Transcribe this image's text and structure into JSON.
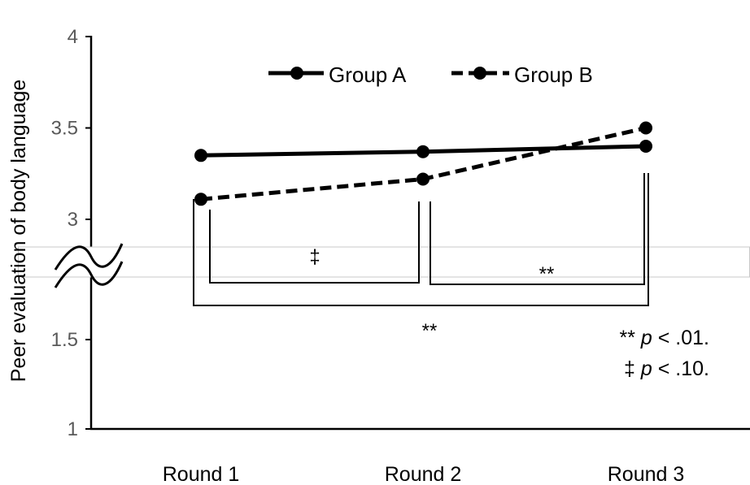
{
  "colors": {
    "line": "#000000",
    "tick_text": "#595959",
    "break_band_border": "#c8c8c8"
  },
  "chart_data": {
    "type": "line",
    "title": "",
    "xlabel": "",
    "ylabel": "Peer evaluation of body language",
    "categories": [
      "Round 1",
      "Round 2",
      "Round 3"
    ],
    "series": [
      {
        "name": "Group A",
        "values": [
          3.35,
          3.37,
          3.4
        ],
        "dashed": false
      },
      {
        "name": "Group B",
        "values": [
          3.11,
          3.22,
          3.5
        ],
        "dashed": true
      }
    ],
    "ylim": [
      1,
      4
    ],
    "yticks": [
      1,
      1.5,
      3,
      3.5,
      4
    ],
    "axis_break": [
      1.5,
      3
    ],
    "grid": false,
    "legend": "top",
    "significance": [
      {
        "from": 0,
        "to": 1,
        "label": "‡"
      },
      {
        "from": 1,
        "to": 2,
        "label": "**"
      },
      {
        "from": 0,
        "to": 2,
        "label": "**"
      }
    ],
    "notes": [
      {
        "marker": "**",
        "stat": "p",
        "text": "< .01."
      },
      {
        "marker": "‡",
        "stat": "p",
        "text": "< .10."
      }
    ]
  }
}
